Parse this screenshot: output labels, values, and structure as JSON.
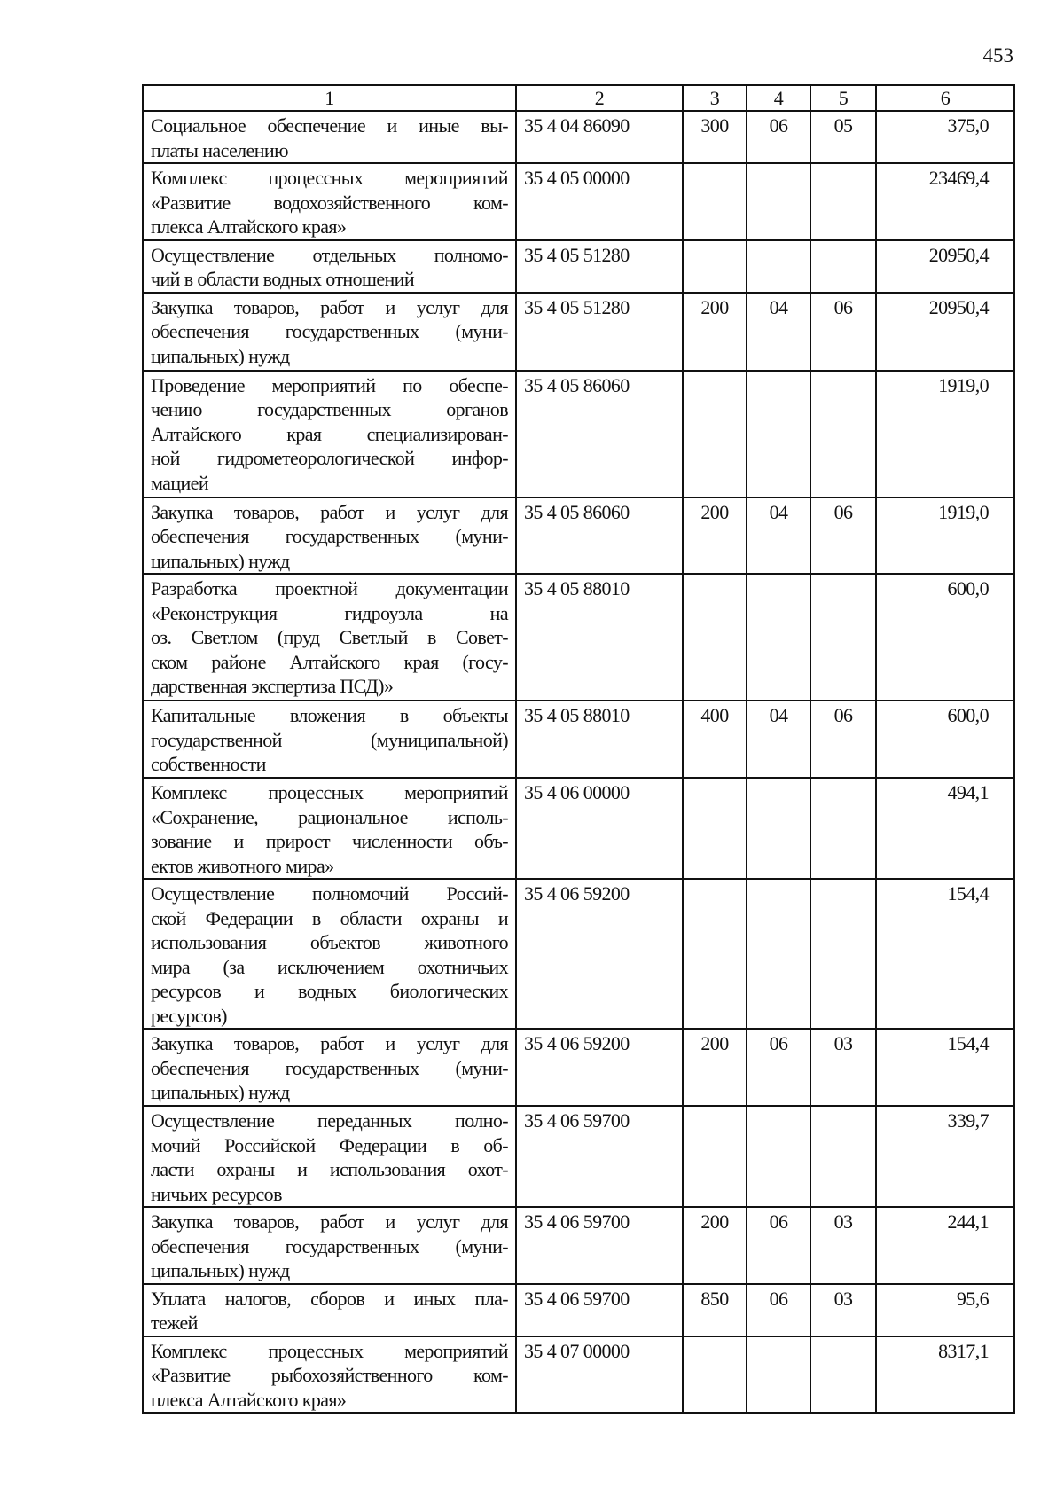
{
  "page_number": "453",
  "headers": [
    "1",
    "2",
    "3",
    "4",
    "5",
    "6"
  ],
  "rows": [
    {
      "name": [
        "Социальное обеспечение и иные вы-",
        "платы населению"
      ],
      "code": "35 4 04 86090",
      "c3": "300",
      "c4": "06",
      "c5": "05",
      "amount": "375,0"
    },
    {
      "name": [
        "Комплекс процессных мероприятий",
        "«Развитие водохозяйственного ком-",
        "плекса Алтайского края»"
      ],
      "code": "35 4 05 00000",
      "c3": "",
      "c4": "",
      "c5": "",
      "amount": "23469,4"
    },
    {
      "name": [
        "Осуществление отдельных полномо-",
        "чий в области водных отношений"
      ],
      "code": "35 4 05 51280",
      "c3": "",
      "c4": "",
      "c5": "",
      "amount": "20950,4"
    },
    {
      "name": [
        "Закупка товаров, работ и услуг для",
        "обеспечения государственных (муни-",
        "ципальных) нужд"
      ],
      "code": "35 4 05 51280",
      "c3": "200",
      "c4": "04",
      "c5": "06",
      "amount": "20950,4"
    },
    {
      "name": [
        "Проведение мероприятий по обеспе-",
        "чению государственных органов",
        "Алтайского края специализирован-",
        "ной гидрометеорологической инфор-",
        "мацией"
      ],
      "code": "35 4 05 86060",
      "c3": "",
      "c4": "",
      "c5": "",
      "amount": "1919,0"
    },
    {
      "name": [
        "Закупка товаров, работ и услуг для",
        "обеспечения государственных (муни-",
        "ципальных) нужд"
      ],
      "code": "35 4 05 86060",
      "c3": "200",
      "c4": "04",
      "c5": "06",
      "amount": "1919,0"
    },
    {
      "name": [
        "Разработка проектной документации",
        "«Реконструкция гидроузла на",
        "оз. Светлом (пруд Светлый в Совет-",
        "ском районе Алтайского края (госу-",
        "дарственная экспертиза ПСД)»"
      ],
      "code": "35 4 05 88010",
      "c3": "",
      "c4": "",
      "c5": "",
      "amount": "600,0"
    },
    {
      "name": [
        "Капитальные вложения в объекты",
        "государственной (муниципальной)",
        "собственности"
      ],
      "code": "35 4 05 88010",
      "c3": "400",
      "c4": "04",
      "c5": "06",
      "amount": "600,0"
    },
    {
      "name": [
        "Комплекс процессных мероприятий",
        "«Сохранение, рациональное исполь-",
        "зование и прирост численности объ-",
        "ектов животного мира»"
      ],
      "code": "35 4 06 00000",
      "c3": "",
      "c4": "",
      "c5": "",
      "amount": "494,1"
    },
    {
      "name": [
        "Осуществление полномочий Россий-",
        "ской Федерации в области охраны и",
        "использования объектов животного",
        "мира (за исключением охотничьих",
        "ресурсов и водных биологических",
        "ресурсов)"
      ],
      "code": "35 4 06 59200",
      "c3": "",
      "c4": "",
      "c5": "",
      "amount": "154,4"
    },
    {
      "name": [
        "Закупка товаров, работ и услуг для",
        "обеспечения государственных (муни-",
        "ципальных) нужд"
      ],
      "code": "35 4 06 59200",
      "c3": "200",
      "c4": "06",
      "c5": "03",
      "amount": "154,4"
    },
    {
      "name": [
        "Осуществление переданных полно-",
        "мочий Российской Федерации в об-",
        "ласти охраны и использования охот-",
        "ничьих ресурсов"
      ],
      "code": "35 4 06 59700",
      "c3": "",
      "c4": "",
      "c5": "",
      "amount": "339,7"
    },
    {
      "name": [
        "Закупка товаров, работ и услуг для",
        "обеспечения государственных (муни-",
        "ципальных) нужд"
      ],
      "code": "35 4 06 59700",
      "c3": "200",
      "c4": "06",
      "c5": "03",
      "amount": "244,1"
    },
    {
      "name": [
        "Уплата налогов, сборов и иных пла-",
        "тежей"
      ],
      "code": "35 4 06 59700",
      "c3": "850",
      "c4": "06",
      "c5": "03",
      "amount": "95,6"
    },
    {
      "name": [
        "Комплекс процессных мероприятий",
        "«Развитие рыбохозяйственного ком-",
        "плекса Алтайского края»"
      ],
      "code": "35 4 07 00000",
      "c3": "",
      "c4": "",
      "c5": "",
      "amount": "8317,1"
    }
  ]
}
